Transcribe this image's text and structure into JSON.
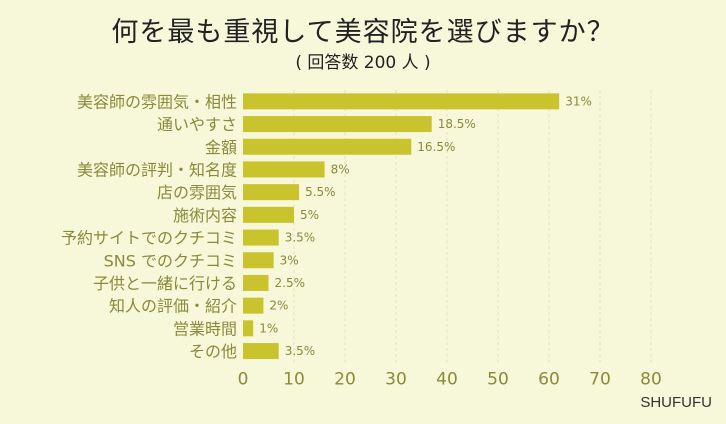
{
  "chart_data": {
    "type": "bar",
    "orientation": "horizontal",
    "title": "何を最も重視して美容院を選びますか？",
    "subtitle": "( 回答数 200 人 )",
    "categories": [
      "美容師の雰囲気・相性",
      "通いやすさ",
      "金額",
      "美容師の評判・知名度",
      "店の雰囲気",
      "施術内容",
      "予約サイトでのクチコミ",
      "SNS でのクチコミ",
      "子供と一緒に行ける",
      "知人の評価・紹介",
      "営業時間",
      "その他"
    ],
    "values": [
      62,
      37,
      33,
      16,
      11,
      10,
      7,
      6,
      5,
      4,
      2,
      7
    ],
    "data_labels": [
      "31%",
      "18.5%",
      "16.5%",
      "8%",
      "5.5%",
      "5%",
      "3.5%",
      "3%",
      "2.5%",
      "2%",
      "1%",
      "3.5%"
    ],
    "xlim": [
      0,
      80
    ],
    "xticks": [
      "0",
      "10",
      "20",
      "30",
      "40",
      "50",
      "60",
      "70",
      "80"
    ],
    "grid": true,
    "colors": {
      "bar": "#c9c32e",
      "background": "#f7f7da",
      "text": "#8a8a3a"
    }
  },
  "brand": "SHUFUFU"
}
